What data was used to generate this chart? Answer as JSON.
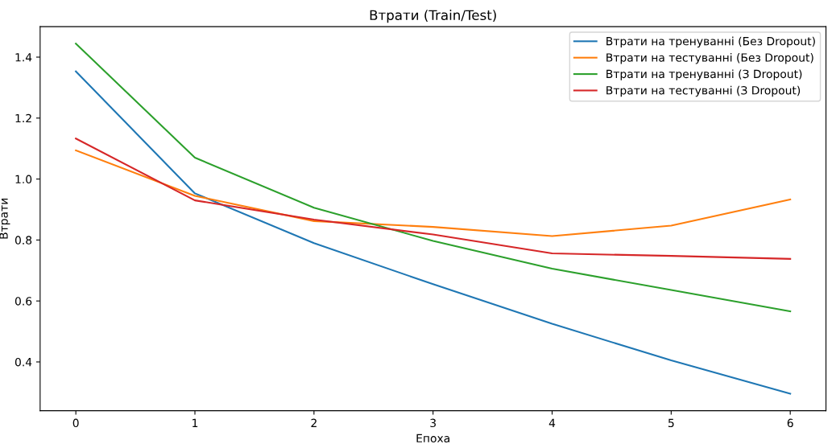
{
  "chart_data": {
    "type": "line",
    "title": "Втрати (Train/Test)",
    "xlabel": "Епоха",
    "ylabel": "Втрати",
    "x": [
      0,
      1,
      2,
      3,
      4,
      5,
      6
    ],
    "series": [
      {
        "name": "Втрати на тренуванні (Без Dropout)",
        "color": "#1f77b4",
        "values": [
          1.353,
          0.953,
          0.79,
          0.655,
          0.525,
          0.405,
          0.296
        ]
      },
      {
        "name": "Втрати на тестуванні (Без Dropout)",
        "color": "#ff7f0e",
        "values": [
          1.094,
          0.945,
          0.862,
          0.843,
          0.813,
          0.847,
          0.933
        ]
      },
      {
        "name": "Втрати на тренуванні (З Dropout)",
        "color": "#2ca02c",
        "values": [
          1.444,
          1.07,
          0.906,
          0.797,
          0.706,
          0.636,
          0.566
        ]
      },
      {
        "name": "Втрати на тестуванні (З Dropout)",
        "color": "#d62728",
        "values": [
          1.133,
          0.93,
          0.867,
          0.818,
          0.756,
          0.748,
          0.738
        ]
      }
    ],
    "xlim": [
      -0.3,
      6.3
    ],
    "xticks": [
      0,
      1,
      2,
      3,
      4,
      5,
      6
    ],
    "ylim": [
      0.24,
      1.5
    ],
    "yticks": [
      {
        "value": 0.4,
        "label": "0.4"
      },
      {
        "value": 0.6,
        "label": "0.6"
      },
      {
        "value": 0.8,
        "label": "0.8"
      },
      {
        "value": 1.0,
        "label": "1.0"
      },
      {
        "value": 1.2,
        "label": "1.2"
      },
      {
        "value": 1.4,
        "label": "1.4"
      }
    ],
    "legend": "top right",
    "grid": false
  }
}
